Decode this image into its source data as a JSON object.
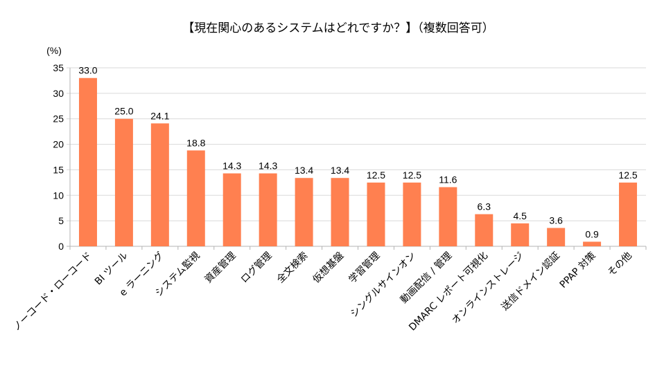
{
  "chart_data": {
    "type": "bar",
    "title": "【現在関心のあるシステムはどれですか？】（複数回答可）",
    "ylabel": "(%)",
    "xlabel": "",
    "ylim": [
      0,
      35
    ],
    "yticks": [
      0,
      5,
      10,
      15,
      20,
      25,
      30,
      35
    ],
    "grid": true,
    "bar_color": "#FF8050",
    "categories": [
      "ノーコード・ローコード",
      "BI ツール",
      "e ラーニング",
      "システム監視",
      "資産管理",
      "ログ管理",
      "全文検索",
      "仮想基盤",
      "学習管理",
      "シングルサインオン",
      "動画配信 / 管理",
      "DMARC レポート可視化",
      "オンラインストレージ",
      "送信ドメイン認証",
      "PPAP 対策",
      "その他"
    ],
    "values": [
      33.0,
      25.0,
      24.1,
      18.8,
      14.3,
      14.3,
      13.4,
      13.4,
      12.5,
      12.5,
      11.6,
      6.3,
      4.5,
      3.6,
      0.9,
      12.5
    ],
    "data_labels": [
      "33.0",
      "25.0",
      "24.1",
      "18.8",
      "14.3",
      "14.3",
      "13.4",
      "13.4",
      "12.5",
      "12.5",
      "11.6",
      "6.3",
      "4.5",
      "3.6",
      "0.9",
      "12.5"
    ]
  }
}
